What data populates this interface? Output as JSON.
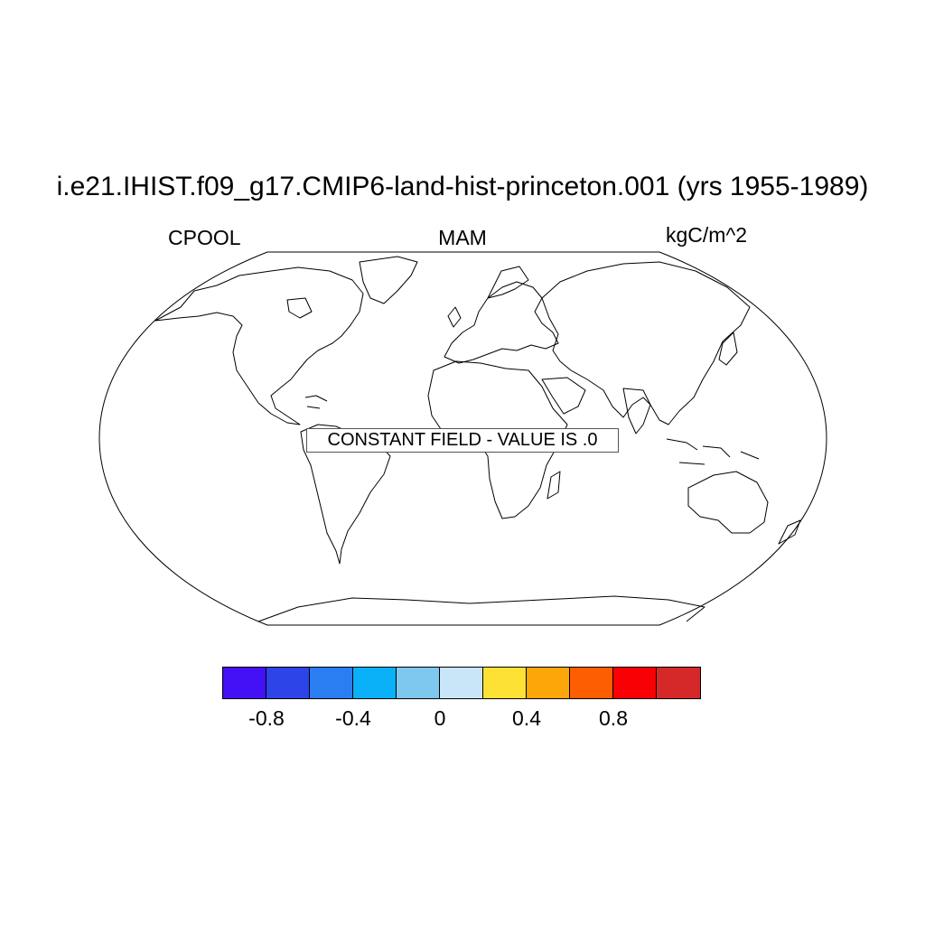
{
  "title": "i.e21.IHIST.f09_g17.CMIP6-land-hist-princeton.001 (yrs 1955-1989)",
  "left_label": "CPOOL",
  "center_label": "MAM",
  "right_label": "kgC/m^2",
  "constant_field_text": "CONSTANT FIELD - VALUE IS .0",
  "map": {
    "projection": "robinson",
    "coastlines": true
  },
  "colorbar": {
    "colors": [
      "#4410f5",
      "#2c44e8",
      "#2a7ef2",
      "#0ab0f8",
      "#7ec8f0",
      "#c8e6f8",
      "#fde135",
      "#fca60a",
      "#fd5e02",
      "#f90004",
      "#d42928"
    ],
    "ticks": [
      {
        "value": -0.8,
        "label": "-0.8"
      },
      {
        "value": -0.4,
        "label": "-0.4"
      },
      {
        "value": 0,
        "label": "0"
      },
      {
        "value": 0.4,
        "label": "0.4"
      },
      {
        "value": 0.8,
        "label": "0.8"
      }
    ]
  }
}
